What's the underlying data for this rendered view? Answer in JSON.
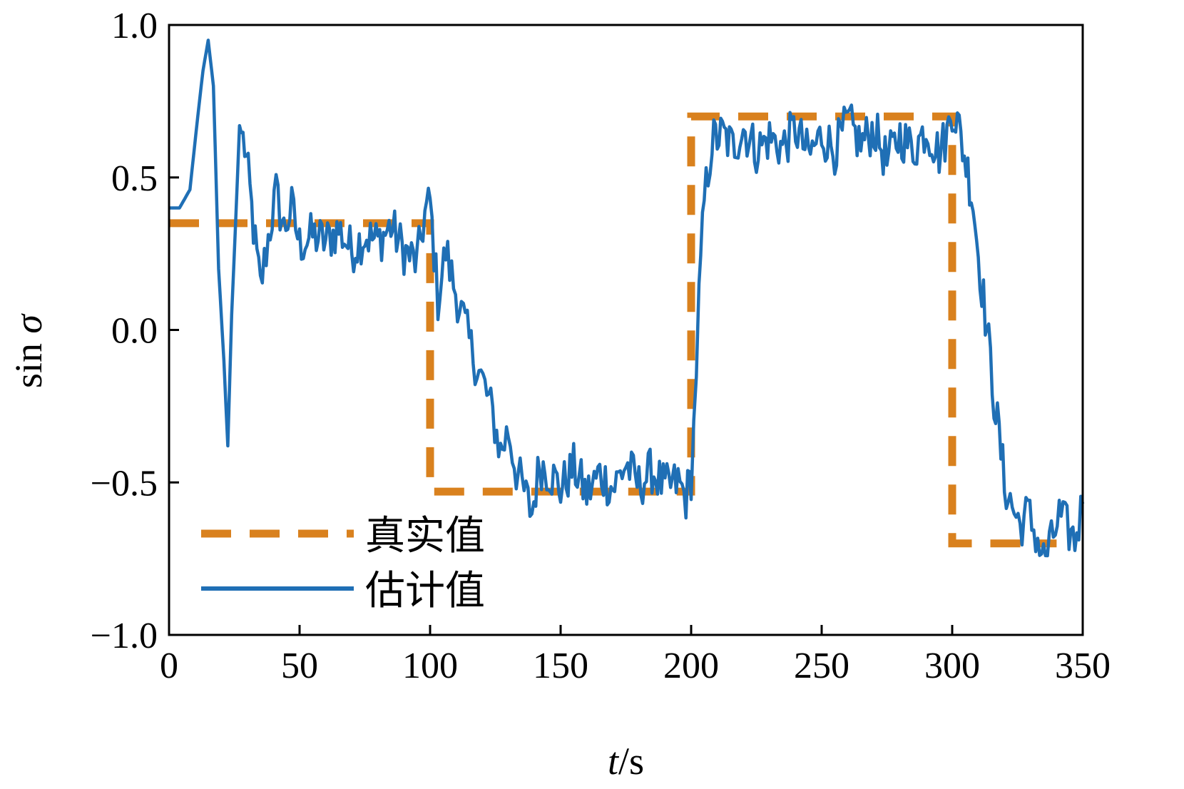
{
  "chart_data": {
    "type": "line",
    "title": "",
    "xlabel": {
      "italic": "t",
      "rest": "/s"
    },
    "ylabel": {
      "plain": "sin ",
      "italic": "σ"
    },
    "xlim": [
      0,
      350
    ],
    "ylim": [
      -1.0,
      1.0
    ],
    "xticks": [
      0,
      50,
      100,
      150,
      200,
      250,
      300,
      350
    ],
    "xtick_labels": [
      "0",
      "50",
      "100",
      "150",
      "200",
      "250",
      "300",
      "350"
    ],
    "yticks": [
      1.0,
      0.5,
      0.0,
      -0.5,
      -1.0
    ],
    "ytick_labels": [
      "1.0",
      "0.5",
      "0.0",
      "−0.5",
      "−1.0"
    ],
    "grid": false,
    "legend_position": "lower-left",
    "series": [
      {
        "name": "真实值",
        "style": "dashed",
        "color": "#d9811e",
        "x": [
          0,
          100,
          100,
          200,
          200,
          300,
          300,
          340
        ],
        "y": [
          0.35,
          0.35,
          -0.53,
          -0.53,
          0.7,
          0.7,
          -0.7,
          -0.7
        ]
      },
      {
        "name": "估计值",
        "style": "solid",
        "color": "#1f6fb5",
        "x": [
          0,
          4,
          8,
          11,
          13,
          15,
          17,
          19,
          21,
          22.5,
          24,
          25.5,
          27,
          29,
          31,
          33,
          35,
          38,
          41,
          44,
          47,
          50,
          55,
          60,
          65,
          70,
          75,
          80,
          85,
          90,
          95,
          98,
          100,
          103,
          106,
          109,
          112,
          115,
          118,
          121,
          124,
          127,
          130,
          133,
          136,
          139,
          142,
          146,
          150,
          155,
          160,
          165,
          170,
          175,
          180,
          185,
          190,
          195,
          198,
          200,
          201,
          202,
          203,
          205,
          208,
          212,
          216,
          220,
          225,
          230,
          235,
          240,
          245,
          250,
          255,
          260,
          265,
          270,
          275,
          280,
          285,
          290,
          295,
          298,
          300,
          302,
          304,
          306,
          308,
          310,
          312,
          314,
          316,
          318,
          320,
          323,
          326,
          329,
          332,
          335,
          338,
          341,
          344,
          347,
          350
        ],
        "y": [
          0.4,
          0.4,
          0.46,
          0.7,
          0.85,
          0.95,
          0.8,
          0.2,
          -0.1,
          -0.38,
          0.05,
          0.35,
          0.67,
          0.6,
          0.45,
          0.28,
          0.14,
          0.3,
          0.45,
          0.33,
          0.4,
          0.28,
          0.31,
          0.29,
          0.33,
          0.26,
          0.31,
          0.29,
          0.34,
          0.26,
          0.22,
          0.38,
          0.42,
          0.1,
          0.26,
          0.15,
          0.06,
          -0.04,
          -0.12,
          -0.19,
          -0.28,
          -0.4,
          -0.33,
          -0.46,
          -0.53,
          -0.6,
          -0.44,
          -0.47,
          -0.52,
          -0.45,
          -0.54,
          -0.47,
          -0.52,
          -0.44,
          -0.51,
          -0.46,
          -0.52,
          -0.5,
          -0.55,
          -0.48,
          -0.32,
          -0.12,
          0.1,
          0.42,
          0.62,
          0.64,
          0.6,
          0.66,
          0.59,
          0.63,
          0.6,
          0.66,
          0.57,
          0.64,
          0.59,
          0.68,
          0.61,
          0.66,
          0.55,
          0.64,
          0.59,
          0.66,
          0.58,
          0.64,
          0.73,
          0.68,
          0.6,
          0.52,
          0.42,
          0.25,
          0.1,
          -0.05,
          -0.22,
          -0.35,
          -0.5,
          -0.58,
          -0.64,
          -0.6,
          -0.67,
          -0.75,
          -0.7,
          -0.61,
          -0.65,
          -0.69,
          -0.57
        ]
      }
    ]
  }
}
